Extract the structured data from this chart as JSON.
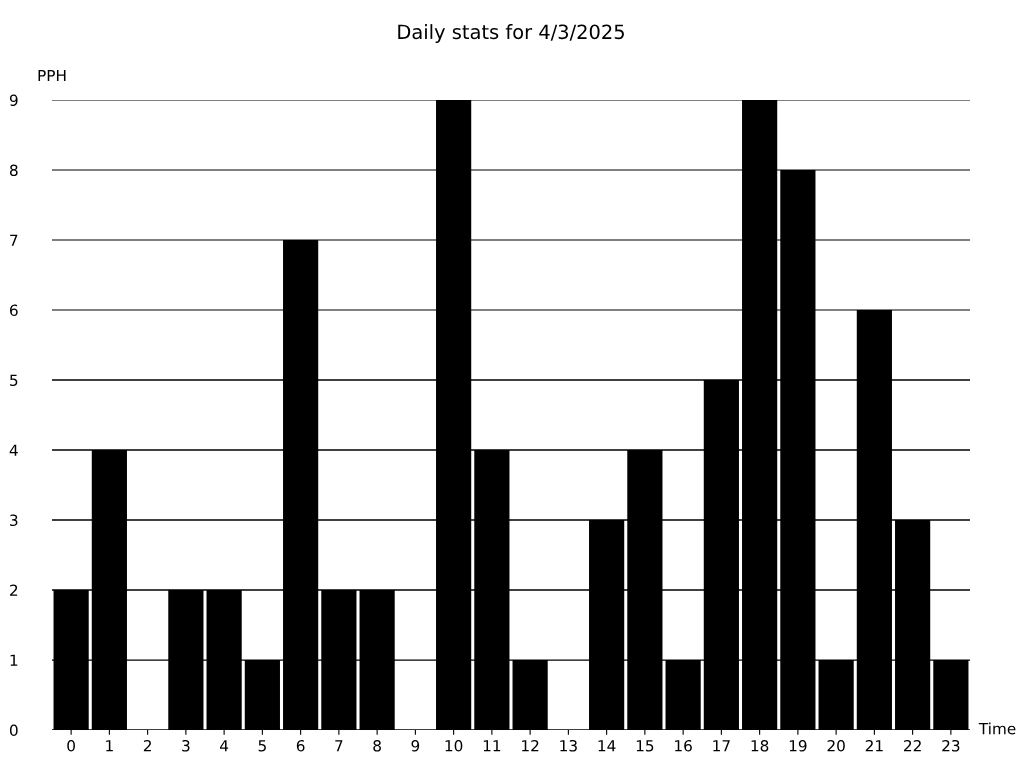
{
  "chart_data": {
    "type": "bar",
    "title": "Daily stats for 4/3/2025",
    "xlabel": "Time",
    "ylabel": "PPH",
    "categories": [
      "0",
      "1",
      "2",
      "3",
      "4",
      "5",
      "6",
      "7",
      "8",
      "9",
      "10",
      "11",
      "12",
      "13",
      "14",
      "15",
      "16",
      "17",
      "18",
      "19",
      "20",
      "21",
      "22",
      "23"
    ],
    "values": [
      2,
      4,
      0,
      2,
      2,
      1,
      7,
      2,
      2,
      0,
      9,
      4,
      1,
      0,
      3,
      4,
      1,
      5,
      9,
      8,
      1,
      6,
      3,
      1
    ],
    "color": "#000000",
    "ylim": [
      0,
      9
    ],
    "yticks": [
      0,
      1,
      2,
      3,
      4,
      5,
      6,
      7,
      8,
      9
    ],
    "grid": "y",
    "legend": false
  }
}
